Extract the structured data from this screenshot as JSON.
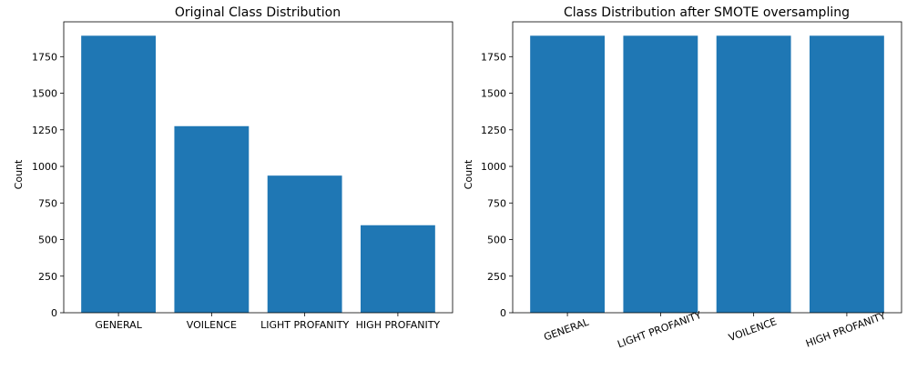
{
  "chart_data": [
    {
      "type": "bar",
      "title": "Original Class Distribution",
      "xlabel": "",
      "ylabel": "Count",
      "categories": [
        "GENERAL",
        "VOILENCE",
        "LIGHT PROFANITY",
        "HIGH PROFANITY"
      ],
      "values": [
        1893,
        1275,
        937,
        598
      ],
      "ylim": [
        0,
        1988
      ],
      "yticks": [
        0,
        250,
        500,
        750,
        1000,
        1250,
        1500,
        1750
      ],
      "bar_color": "#1f77b4",
      "xtick_rotation": 0,
      "grid": false,
      "legend": "none"
    },
    {
      "type": "bar",
      "title": "Class Distribution after SMOTE oversampling",
      "xlabel": "",
      "ylabel": "Count",
      "categories": [
        "GENERAL",
        "LIGHT PROFANITY",
        "VOILENCE",
        "HIGH PROFANITY"
      ],
      "values": [
        1893,
        1893,
        1893,
        1893
      ],
      "ylim": [
        0,
        1988
      ],
      "yticks": [
        0,
        250,
        500,
        750,
        1000,
        1250,
        1500,
        1750
      ],
      "bar_color": "#1f77b4",
      "xtick_rotation": -20,
      "grid": false,
      "legend": "none"
    }
  ]
}
